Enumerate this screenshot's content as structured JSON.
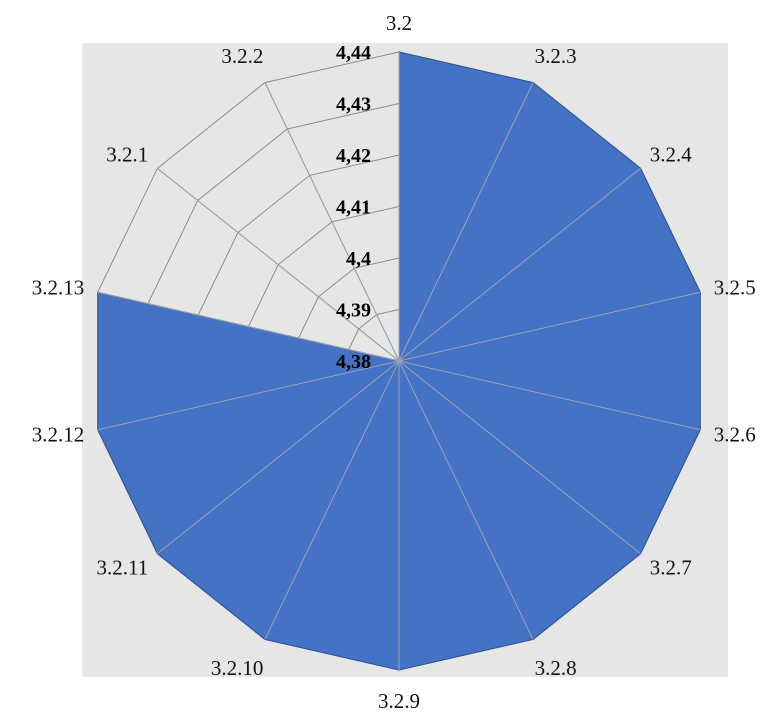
{
  "chart_data": {
    "type": "radar",
    "title": "",
    "categories": [
      "3.2",
      "3.2.3",
      "3.2.4",
      "3.2.5",
      "3.2.6",
      "3.2.7",
      "3.2.8",
      "3.2.9",
      "3.2.10",
      "3.2.11",
      "3.2.12",
      "3.2.13",
      "3.2.1",
      "3.2.2"
    ],
    "series": [
      {
        "values": [
          4.44,
          4.44,
          4.44,
          4.44,
          4.44,
          4.44,
          4.44,
          4.44,
          4.44,
          4.44,
          4.44,
          4.44,
          4.38,
          4.38
        ]
      }
    ],
    "r_axis": {
      "min": 4.38,
      "max": 4.44,
      "ticks": [
        4.38,
        4.39,
        4.4,
        4.41,
        4.42,
        4.43,
        4.44
      ],
      "tick_labels": [
        "4,38",
        "4,39",
        "4,4",
        "4,41",
        "4,42",
        "4,43",
        "4,44"
      ]
    },
    "grid": true,
    "legend": "none",
    "colors": {
      "plot_background": "#e6e6e6",
      "series_fill": "#4472c4",
      "series_stroke": "#2f528f",
      "grid_line": "#8c8c8c"
    }
  }
}
